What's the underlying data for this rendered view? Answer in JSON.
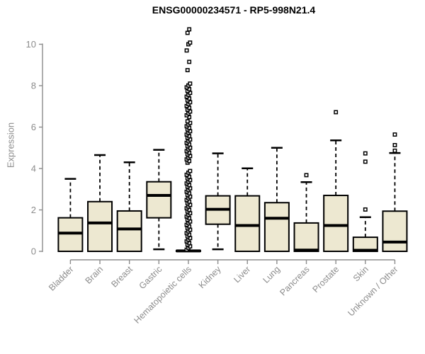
{
  "chart_data": {
    "type": "box",
    "title": "ENSG00000234571 - RP5-998N21.4",
    "ylabel": "Expression",
    "xlabel": "",
    "ylim": [
      0,
      10.8
    ],
    "yticks": [
      0,
      2,
      4,
      6,
      8,
      10
    ],
    "grid": false,
    "legend": "none",
    "colors": {
      "box_fill": "#EDE8D1",
      "box_stroke": "#000000",
      "median": "#000000",
      "axis": "#8C8C8C",
      "tick_label": "#8C8C8C",
      "title": "#000000"
    },
    "categories": [
      "Bladder",
      "Brain",
      "Breast",
      "Gastric",
      "Hematopoietic cells",
      "Kidney",
      "Liver",
      "Lung",
      "Pancreas",
      "Prostate",
      "Skin",
      "Unknown / Other"
    ],
    "series": [
      {
        "category": "Bladder",
        "q1": 0,
        "median": 0.88,
        "q3": 1.62,
        "whisker_low": 0,
        "whisker_high": 3.5,
        "outliers": []
      },
      {
        "category": "Brain",
        "q1": 0,
        "median": 1.37,
        "q3": 2.4,
        "whisker_low": 0,
        "whisker_high": 4.65,
        "outliers": []
      },
      {
        "category": "Breast",
        "q1": 0,
        "median": 1.08,
        "q3": 1.95,
        "whisker_low": 0,
        "whisker_high": 4.3,
        "outliers": []
      },
      {
        "category": "Gastric",
        "q1": 1.62,
        "median": 2.7,
        "q3": 3.36,
        "whisker_low": 0.1,
        "whisker_high": 4.9,
        "outliers": []
      },
      {
        "category": "Hematopoietic cells",
        "q1": 0,
        "median": 0.02,
        "q3": 0.04,
        "whisker_low": 0,
        "whisker_high": 0.05,
        "outliers": [
          0.08,
          0.16,
          0.24,
          0.32,
          0.4,
          0.48,
          0.56,
          0.64,
          0.72,
          0.8,
          0.88,
          0.96,
          1.04,
          1.12,
          1.2,
          1.28,
          1.36,
          1.44,
          1.52,
          1.6,
          1.68,
          1.76,
          1.84,
          1.92,
          2.0,
          2.08,
          2.16,
          2.24,
          2.32,
          2.4,
          2.48,
          2.56,
          2.64,
          2.72,
          2.8,
          2.88,
          2.96,
          3.04,
          3.12,
          3.2,
          3.28,
          3.36,
          3.44,
          3.52,
          3.6,
          3.7,
          3.8,
          3.88,
          4.28,
          4.36,
          4.44,
          4.52,
          4.6,
          4.68,
          4.76,
          4.84,
          4.92,
          5.0,
          5.08,
          5.16,
          5.24,
          5.32,
          5.4,
          5.48,
          5.56,
          5.64,
          5.72,
          5.8,
          5.88,
          5.96,
          6.04,
          6.12,
          6.2,
          6.28,
          6.48,
          6.57,
          6.66,
          6.75,
          6.84,
          6.93,
          7.02,
          7.11,
          7.2,
          7.29,
          7.38,
          7.47,
          7.56,
          7.65,
          7.74,
          7.83,
          7.92,
          8.01,
          8.1,
          8.75,
          9.15,
          9.7,
          10.0,
          10.08,
          10.55,
          10.72
        ]
      },
      {
        "category": "Kidney",
        "q1": 1.31,
        "median": 2.03,
        "q3": 2.68,
        "whisker_low": 0.1,
        "whisker_high": 4.73,
        "outliers": []
      },
      {
        "category": "Liver",
        "q1": 0,
        "median": 1.25,
        "q3": 2.68,
        "whisker_low": 0,
        "whisker_high": 4.01,
        "outliers": []
      },
      {
        "category": "Lung",
        "q1": 0,
        "median": 1.6,
        "q3": 2.35,
        "whisker_low": 0,
        "whisker_high": 5.0,
        "outliers": []
      },
      {
        "category": "Pancreas",
        "q1": 0,
        "median": 0.06,
        "q3": 1.37,
        "whisker_low": 0,
        "whisker_high": 3.34,
        "outliers": [
          3.68
        ]
      },
      {
        "category": "Prostate",
        "q1": 0,
        "median": 1.25,
        "q3": 2.7,
        "whisker_low": 0,
        "whisker_high": 5.36,
        "outliers": [
          6.72
        ]
      },
      {
        "category": "Skin",
        "q1": 0,
        "median": 0.05,
        "q3": 0.68,
        "whisker_low": 0,
        "whisker_high": 1.65,
        "outliers": [
          2.02,
          4.33,
          4.73
        ]
      },
      {
        "category": "Unknown / Other",
        "q1": 0,
        "median": 0.45,
        "q3": 1.94,
        "whisker_low": 0,
        "whisker_high": 4.75,
        "outliers": [
          4.86,
          5.13,
          5.64
        ]
      }
    ]
  }
}
